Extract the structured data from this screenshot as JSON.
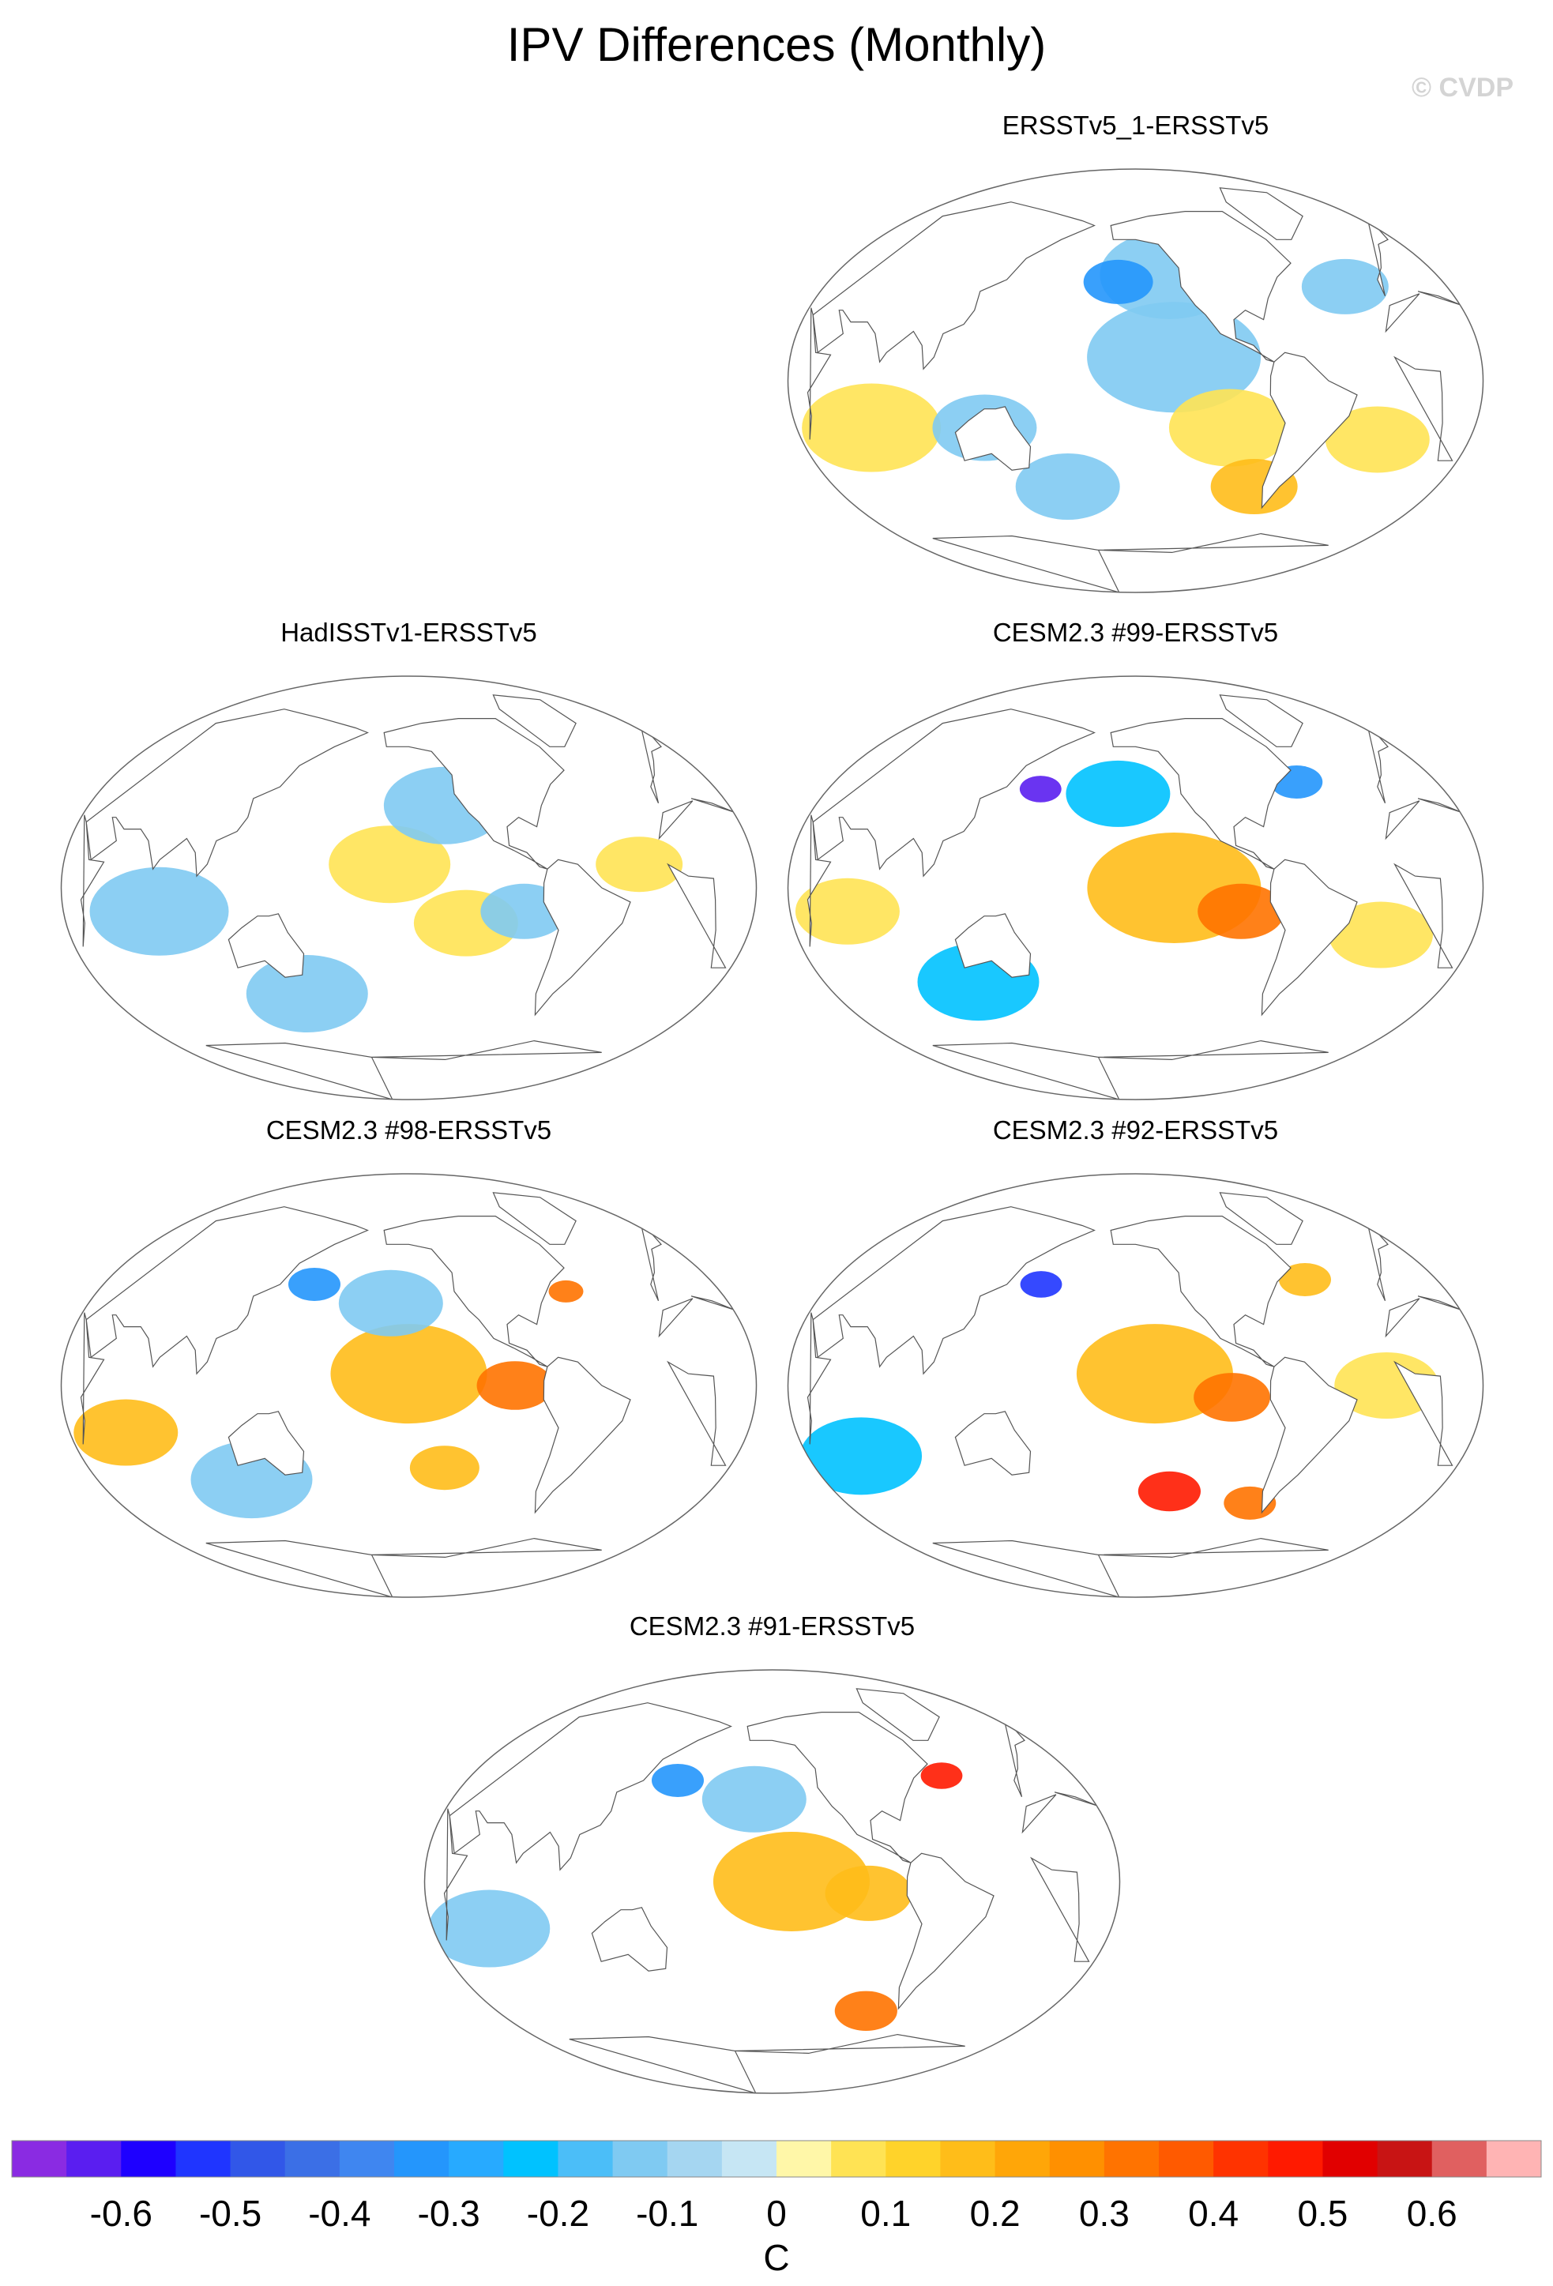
{
  "title": "IPV Differences (Monthly)",
  "watermark": "© CVDP",
  "chart_data": [
    {
      "type": "heatmap",
      "title": "ERSSTv5_1-ERSSTv5",
      "projection": "robinson",
      "color": "#ffffff",
      "anomalies": [
        {
          "lon": -130,
          "lat": 45,
          "value": -0.1,
          "radius": 40
        },
        {
          "lon": -160,
          "lat": 42,
          "value": -0.3,
          "radius": 20
        },
        {
          "lon": -130,
          "lat": 10,
          "value": -0.1,
          "radius": 50
        },
        {
          "lon": -100,
          "lat": -20,
          "value": 0.1,
          "radius": 35
        },
        {
          "lon": -80,
          "lat": -45,
          "value": 0.2,
          "radius": 25
        },
        {
          "lon": 70,
          "lat": -20,
          "value": 0.1,
          "radius": 40
        },
        {
          "lon": 130,
          "lat": -20,
          "value": -0.1,
          "radius": 30
        },
        {
          "lon": -30,
          "lat": 40,
          "value": -0.1,
          "radius": 25
        },
        {
          "lon": -20,
          "lat": -25,
          "value": 0.1,
          "radius": 30
        },
        {
          "lon": 170,
          "lat": -45,
          "value": -0.1,
          "radius": 30
        }
      ]
    },
    {
      "type": "heatmap",
      "title": "HadISSTv1-ERSSTv5",
      "projection": "robinson",
      "color": "#ffffff",
      "anomalies": [
        {
          "lon": -160,
          "lat": 10,
          "value": 0.1,
          "radius": 35
        },
        {
          "lon": -130,
          "lat": 35,
          "value": -0.1,
          "radius": 35
        },
        {
          "lon": -120,
          "lat": -15,
          "value": 0.1,
          "radius": 30
        },
        {
          "lon": 80,
          "lat": -10,
          "value": -0.1,
          "radius": 40
        },
        {
          "lon": -30,
          "lat": 10,
          "value": 0.1,
          "radius": 25
        },
        {
          "lon": 150,
          "lat": -45,
          "value": -0.1,
          "radius": 35
        },
        {
          "lon": -90,
          "lat": -10,
          "value": -0.1,
          "radius": 25
        }
      ]
    },
    {
      "type": "heatmap",
      "title": "CESM2.3 #99-ERSSTv5",
      "projection": "robinson",
      "color": "#ffffff",
      "anomalies": [
        {
          "lon": -130,
          "lat": 0,
          "value": 0.2,
          "radius": 50
        },
        {
          "lon": -95,
          "lat": -10,
          "value": 0.3,
          "radius": 25
        },
        {
          "lon": 155,
          "lat": 42,
          "value": -0.6,
          "radius": 12
        },
        {
          "lon": -160,
          "lat": 40,
          "value": -0.2,
          "radius": 30
        },
        {
          "lon": -55,
          "lat": 45,
          "value": -0.3,
          "radius": 15
        },
        {
          "lon": 60,
          "lat": -10,
          "value": 0.1,
          "radius": 30
        },
        {
          "lon": 120,
          "lat": -40,
          "value": -0.2,
          "radius": 35
        },
        {
          "lon": -20,
          "lat": -20,
          "value": 0.1,
          "radius": 30
        }
      ]
    },
    {
      "type": "heatmap",
      "title": "CESM2.3 #98-ERSSTv5",
      "projection": "robinson",
      "color": "#ffffff",
      "anomalies": [
        {
          "lon": -150,
          "lat": 5,
          "value": 0.2,
          "radius": 45
        },
        {
          "lon": -95,
          "lat": 0,
          "value": 0.3,
          "radius": 22
        },
        {
          "lon": 155,
          "lat": 43,
          "value": -0.3,
          "radius": 15
        },
        {
          "lon": -160,
          "lat": 35,
          "value": -0.1,
          "radius": 30
        },
        {
          "lon": 60,
          "lat": -20,
          "value": 0.2,
          "radius": 30
        },
        {
          "lon": -60,
          "lat": 40,
          "value": 0.3,
          "radius": 10
        },
        {
          "lon": -130,
          "lat": -35,
          "value": 0.2,
          "radius": 20
        },
        {
          "lon": 120,
          "lat": -40,
          "value": -0.1,
          "radius": 35
        }
      ]
    },
    {
      "type": "heatmap",
      "title": "CESM2.3 #92-ERSSTv5",
      "projection": "robinson",
      "color": "#ffffff",
      "anomalies": [
        {
          "lon": -140,
          "lat": 5,
          "value": 0.2,
          "radius": 45
        },
        {
          "lon": -100,
          "lat": -5,
          "value": 0.3,
          "radius": 22
        },
        {
          "lon": 155,
          "lat": 43,
          "value": -0.5,
          "radius": 12
        },
        {
          "lon": -130,
          "lat": -45,
          "value": 0.5,
          "radius": 18
        },
        {
          "lon": -80,
          "lat": -50,
          "value": 0.3,
          "radius": 15
        },
        {
          "lon": 60,
          "lat": -30,
          "value": -0.2,
          "radius": 35
        },
        {
          "lon": -50,
          "lat": 45,
          "value": 0.2,
          "radius": 15
        },
        {
          "lon": -20,
          "lat": 0,
          "value": 0.1,
          "radius": 30
        }
      ]
    },
    {
      "type": "heatmap",
      "title": "CESM2.3 #91-ERSSTv5",
      "projection": "robinson",
      "color": "#ffffff",
      "anomalies": [
        {
          "lon": -140,
          "lat": 0,
          "value": 0.2,
          "radius": 45
        },
        {
          "lon": -100,
          "lat": -5,
          "value": 0.2,
          "radius": 25
        },
        {
          "lon": 155,
          "lat": 43,
          "value": -0.3,
          "radius": 15
        },
        {
          "lon": -50,
          "lat": 45,
          "value": 0.5,
          "radius": 12
        },
        {
          "lon": -90,
          "lat": -55,
          "value": 0.3,
          "radius": 18
        },
        {
          "lon": 60,
          "lat": -20,
          "value": -0.1,
          "radius": 35
        },
        {
          "lon": -160,
          "lat": 35,
          "value": -0.1,
          "radius": 30
        }
      ]
    }
  ],
  "colorbar": {
    "unit": "C",
    "colors": [
      "#8a2be2",
      "#5a1ef0",
      "#1e00ff",
      "#1f35ff",
      "#3157e8",
      "#3b6fe6",
      "#3f86f0",
      "#2496fc",
      "#27aaff",
      "#00c2ff",
      "#4bbef8",
      "#7fcaf2",
      "#a5d6f1",
      "#c6e6f4",
      "#fff7a8",
      "#ffe354",
      "#ffd32a",
      "#ffbd19",
      "#ffa608",
      "#ff9000",
      "#ff7300",
      "#ff5a00",
      "#ff3300",
      "#ff1a00",
      "#e10000",
      "#c81414",
      "#e06060",
      "#ffb4b4"
    ],
    "tick_labels": [
      "-0.6",
      "-0.5",
      "-0.4",
      "-0.3",
      "-0.2",
      "-0.1",
      "0",
      "0.1",
      "0.2",
      "0.3",
      "0.4",
      "0.5",
      "0.6"
    ]
  }
}
